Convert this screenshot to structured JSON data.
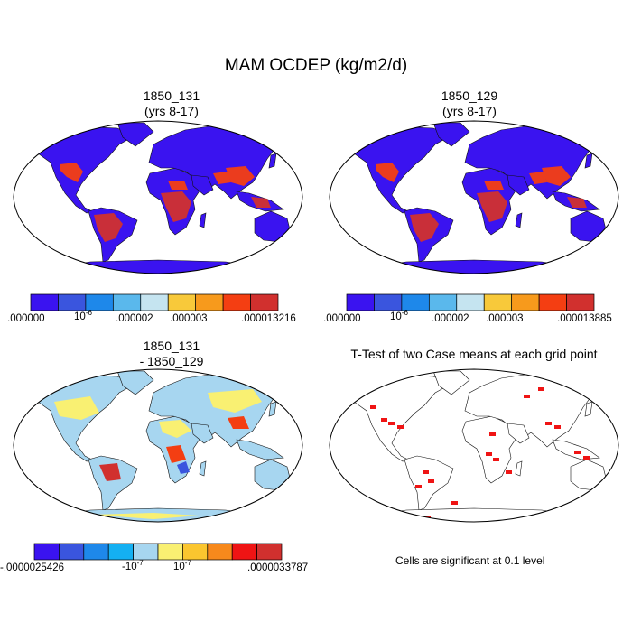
{
  "main_title": "MAM OCDEP (kg/m2/d)",
  "panels": {
    "p1": {
      "title_line1": "1850_131",
      "title_line2": "(yrs 8-17)"
    },
    "p2": {
      "title_line1": "1850_129",
      "title_line2": "(yrs 8-17)"
    },
    "p3": {
      "title_line1": "1850_131",
      "title_line2": "- 1850_129"
    },
    "p4": {
      "title_line1": "T-Test of two Case means at each grid point"
    }
  },
  "colorbars": {
    "cb1": {
      "colors": [
        "#3a13f0",
        "#3a55de",
        "#1e88ea",
        "#5ab8ec",
        "#c5e4f0",
        "#f8c93a",
        "#f79a1c",
        "#f43e12",
        "#d1302e"
      ],
      "labels": {
        "l0": ".000000",
        "l1_base": "10",
        "l1_exp": "-6",
        "l2": ".000002",
        "l3": ".000003",
        "l4": ".000013216"
      }
    },
    "cb2": {
      "colors": [
        "#3a13f0",
        "#3a55de",
        "#1e88ea",
        "#5ab8ec",
        "#c5e4f0",
        "#f8c93a",
        "#f79a1c",
        "#f43e12",
        "#d1302e"
      ],
      "labels": {
        "l0": ".000000",
        "l1_base": "10",
        "l1_exp": "-6",
        "l2": ".000002",
        "l3": ".000003",
        "l4": ".000013885"
      }
    },
    "cb3": {
      "colors": [
        "#3a13f0",
        "#3a55de",
        "#1e88ea",
        "#14b0f2",
        "#a7d6f0",
        "#f9f072",
        "#fbc62f",
        "#f7891c",
        "#ef1414",
        "#d1302e"
      ],
      "labels": {
        "l0": "-.0000025426",
        "l1_base": "-10",
        "l1_exp": "-7",
        "l2_base": "10",
        "l2_exp": "-7",
        "l3": ".0000033787"
      }
    }
  },
  "significance_note": "Cells are significant at 0.1 level",
  "field_colors": {
    "ocean": "#ffffff",
    "land_low": "#3a13f0",
    "land_mid": "#3a55de",
    "hot_a": "#f43e12",
    "hot_b": "#d1302e",
    "diff_light": "#a7d6f0",
    "diff_yellow": "#f9f072",
    "signif": "#ef1414"
  }
}
